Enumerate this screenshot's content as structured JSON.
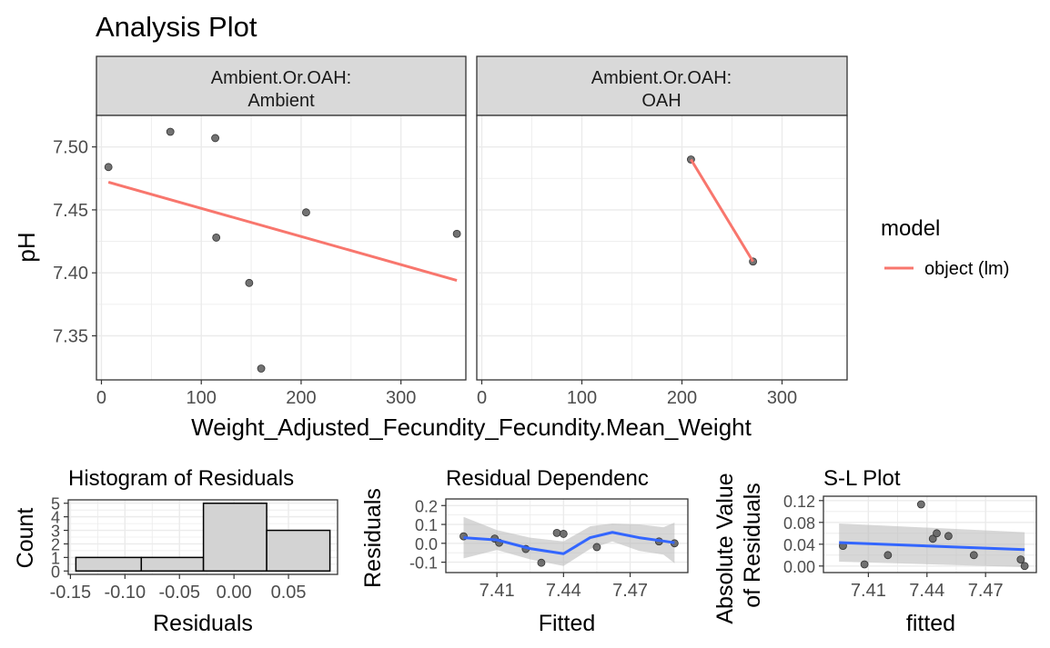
{
  "title": "Analysis Plot",
  "colors": {
    "model_line": "#F8766D",
    "smooth_line": "#3366FF",
    "points": "#595959",
    "band": "#BDBDBD",
    "strip_bg": "#D9D9D9",
    "grid": "#EBEBEB"
  },
  "main": {
    "panels": [
      {
        "strip": [
          "Ambient.Or.OAH:",
          "Ambient"
        ]
      },
      {
        "strip": [
          "Ambient.Or.OAH:",
          "OAH"
        ]
      }
    ],
    "xlabel": "Weight_Adjusted_Fecundity_Fecundity.Mean_Weight",
    "ylabel": "pH",
    "legend": {
      "title": "model",
      "entries": [
        "object (lm)"
      ]
    }
  },
  "chart_data": [
    {
      "type": "scatter",
      "facets": [
        "Ambient",
        "OAH"
      ],
      "xlabel": "Weight_Adjusted_Fecundity_Fecundity.Mean_Weight",
      "ylabel": "pH",
      "xlim": [
        -5,
        365
      ],
      "ylim": [
        7.315,
        7.525
      ],
      "xticks": [
        0,
        100,
        200,
        300
      ],
      "xtick_labels": [
        "0",
        "100",
        "200",
        "300"
      ],
      "yticks": [
        7.35,
        7.4,
        7.45,
        7.5
      ],
      "ytick_labels": [
        "7.35",
        "7.40",
        "7.45",
        "7.50"
      ],
      "grid": true,
      "legend_position": "right",
      "series": [
        {
          "facet": "Ambient",
          "points": [
            [
              7,
              7.484
            ],
            [
              69,
              7.512
            ],
            [
              114,
              7.507
            ],
            [
              115,
              7.428
            ],
            [
              148,
              7.392
            ],
            [
              160,
              7.324
            ],
            [
              205,
              7.448
            ],
            [
              356,
              7.431
            ]
          ]
        },
        {
          "facet": "OAH",
          "points": [
            [
              209,
              7.49
            ],
            [
              271,
              7.409
            ]
          ]
        }
      ],
      "fit_lines": [
        {
          "facet": "Ambient",
          "name": "object (lm)",
          "x": [
            7,
            356
          ],
          "y": [
            7.472,
            7.394
          ]
        },
        {
          "facet": "OAH",
          "name": "object (lm)",
          "x": [
            209,
            271
          ],
          "y": [
            7.49,
            7.409
          ]
        }
      ]
    },
    {
      "type": "bar",
      "title": "Histogram of Residuals",
      "xlabel": "Residuals",
      "ylabel": "Count",
      "bins": [
        [
          -0.145,
          -0.085
        ],
        [
          -0.085,
          -0.028
        ],
        [
          -0.028,
          0.03
        ],
        [
          0.03,
          0.088
        ]
      ],
      "values": [
        1,
        1,
        5,
        3
      ],
      "xlim": [
        -0.152,
        0.095
      ],
      "ylim": [
        -0.25,
        5.25
      ],
      "xticks": [
        -0.15,
        -0.1,
        -0.05,
        0.0,
        0.05
      ],
      "xtick_labels": [
        "-0.15",
        "-0.10",
        "-0.05",
        "0.00",
        "0.05"
      ],
      "yticks": [
        0,
        1,
        2,
        3,
        4,
        5
      ],
      "ytick_labels": [
        "0",
        "1",
        "2",
        "3",
        "4",
        "5"
      ],
      "grid": true
    },
    {
      "type": "scatter",
      "title": "Residual Dependenc",
      "xlabel": "Fitted",
      "ylabel": "Residuals",
      "xlim": [
        7.387,
        7.496
      ],
      "ylim": [
        -0.155,
        0.235
      ],
      "xticks": [
        7.41,
        7.44,
        7.47
      ],
      "xtick_labels": [
        "7.41",
        "7.44",
        "7.47"
      ],
      "yticks": [
        -0.1,
        0.0,
        0.1,
        0.2
      ],
      "ytick_labels": [
        "-0.1",
        "0.0",
        "0.1",
        "0.2"
      ],
      "points": [
        [
          7.395,
          0.037
        ],
        [
          7.409,
          0.025
        ],
        [
          7.411,
          0.003
        ],
        [
          7.423,
          -0.03
        ],
        [
          7.43,
          -0.103
        ],
        [
          7.437,
          0.055
        ],
        [
          7.44,
          0.05
        ],
        [
          7.455,
          -0.02
        ],
        [
          7.483,
          0.01
        ],
        [
          7.49,
          0.0
        ]
      ],
      "smooth": {
        "x": [
          7.395,
          7.41,
          7.425,
          7.44,
          7.452,
          7.462,
          7.474,
          7.485,
          7.49
        ],
        "y": [
          0.03,
          0.018,
          -0.028,
          -0.055,
          0.03,
          0.058,
          0.03,
          0.012,
          0.003
        ]
      },
      "band": {
        "lower": [
          -0.08,
          -0.035,
          -0.085,
          -0.12,
          -0.03,
          0.01,
          -0.04,
          -0.06,
          -0.105
        ],
        "upper": [
          0.14,
          0.07,
          0.03,
          0.01,
          0.09,
          0.105,
          0.1,
          0.085,
          0.11
        ]
      },
      "grid": true
    },
    {
      "type": "scatter",
      "title": "S-L Plot",
      "xlabel": "fitted",
      "ylabel": "Absolute Value of Residuals",
      "xlim": [
        7.387,
        7.496
      ],
      "ylim": [
        -0.012,
        0.128
      ],
      "xticks": [
        7.41,
        7.44,
        7.47
      ],
      "xtick_labels": [
        "7.41",
        "7.44",
        "7.47"
      ],
      "yticks": [
        0.0,
        0.04,
        0.08,
        0.12
      ],
      "ytick_labels": [
        "0.00",
        "0.04",
        "0.08",
        "0.12"
      ],
      "points": [
        [
          7.397,
          0.037
        ],
        [
          7.408,
          0.003
        ],
        [
          7.42,
          0.02
        ],
        [
          7.437,
          0.113
        ],
        [
          7.443,
          0.05
        ],
        [
          7.445,
          0.06
        ],
        [
          7.451,
          0.055
        ],
        [
          7.464,
          0.02
        ],
        [
          7.488,
          0.012
        ],
        [
          7.49,
          0.0
        ]
      ],
      "smooth": {
        "x": [
          7.395,
          7.49
        ],
        "y": [
          0.043,
          0.03
        ]
      },
      "band": {
        "lower": [
          0.008,
          -0.002
        ],
        "upper": [
          0.078,
          0.062
        ]
      },
      "grid": true
    }
  ]
}
